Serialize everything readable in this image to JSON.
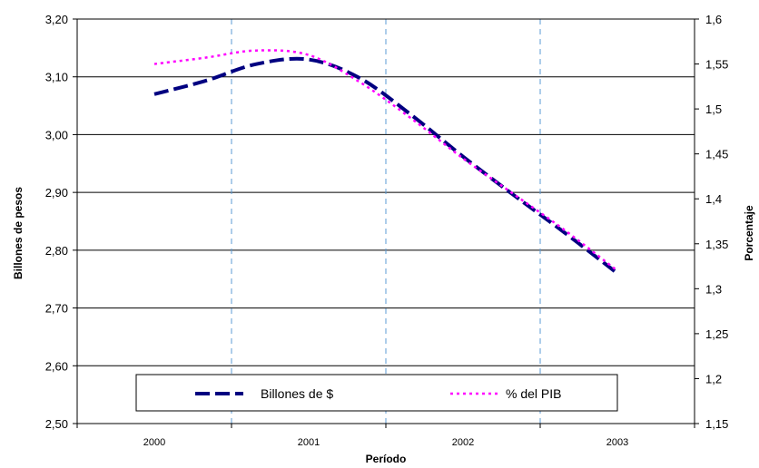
{
  "chart_data": {
    "type": "line",
    "categories": [
      "2000",
      "2001",
      "2002",
      "2003"
    ],
    "xlabel": "Período",
    "ylabel_left": "Billones de pesos",
    "ylabel_right": "Porcentaje",
    "y_left": {
      "min": 2.5,
      "max": 3.2,
      "step": 0.1,
      "tick_labels": [
        "2,50",
        "2,60",
        "2,70",
        "2,80",
        "2,90",
        "3,00",
        "3,10",
        "3,20"
      ]
    },
    "y_right": {
      "min": 1.15,
      "max": 1.6,
      "step": 0.05,
      "tick_labels": [
        "1,15",
        "1,2",
        "1,25",
        "1,3",
        "1,35",
        "1,4",
        "1,45",
        "1,5",
        "1,55",
        "1,6"
      ]
    },
    "series": [
      {
        "name": "Billones  de $",
        "axis": "left",
        "color": "#000080",
        "style": "long-dash",
        "x": [
          0,
          0.33,
          0.66,
          1.0,
          1.33,
          1.66,
          2.0,
          2.33,
          2.66,
          3.0
        ],
        "values": [
          3.07,
          3.093,
          3.122,
          3.13,
          3.098,
          3.035,
          2.962,
          2.895,
          2.83,
          2.76
        ]
      },
      {
        "name": "% del PIB",
        "axis": "right",
        "color": "#ff00ff",
        "style": "dotted",
        "x": [
          0,
          0.33,
          0.66,
          1.0,
          1.33,
          1.66,
          2.0,
          2.33,
          2.66,
          3.0
        ],
        "values": [
          1.55,
          1.557,
          1.565,
          1.56,
          1.53,
          1.49,
          1.445,
          1.405,
          1.365,
          1.32
        ]
      }
    ],
    "grid": {
      "horizontal": true,
      "vertical_dashed": true
    },
    "legend": {
      "position": "bottom-inside",
      "items": [
        "Billones  de $",
        "% del PIB"
      ]
    }
  }
}
